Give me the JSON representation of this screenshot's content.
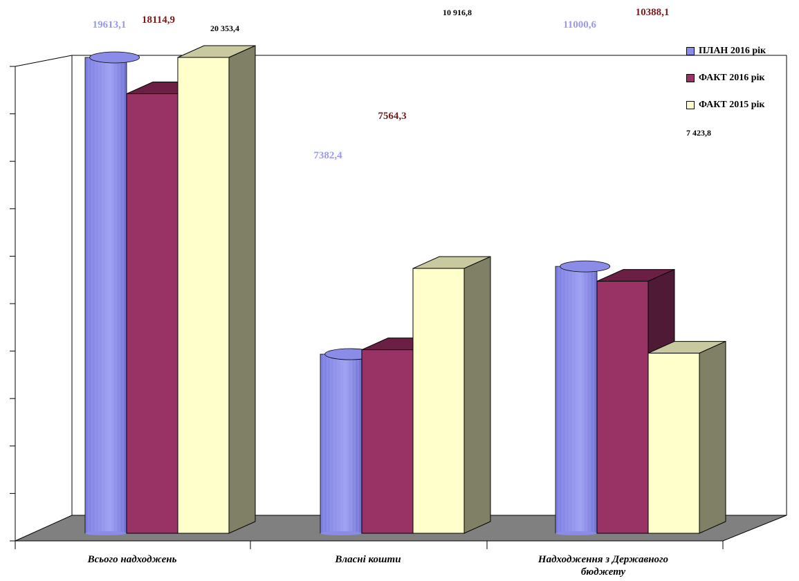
{
  "chart_data": {
    "type": "bar",
    "categories": [
      "Всього надходжень",
      "Власні кошти",
      "Надходження з Державного бюджету"
    ],
    "series": [
      {
        "name": "ПЛАН 2016 рік",
        "values": [
          19613.1,
          7382.4,
          11000.6
        ],
        "labels": [
          "19613,1",
          "7382,4",
          "11000,6"
        ],
        "color": "#8a8ce8",
        "label_color": "#9999ee"
      },
      {
        "name": "ФАКТ 2016 рік",
        "values": [
          18114.9,
          7564.3,
          10388.1
        ],
        "labels": [
          "18114,9",
          "7564,3",
          "10388,1"
        ],
        "color": "#993366",
        "label_color": "#7a1a1a"
      },
      {
        "name": "ФАКТ 2015 рік",
        "values": [
          20353.4,
          10916.8,
          7423.8
        ],
        "labels": [
          "20 353,4",
          "10 916,8",
          "7 423,8"
        ],
        "color": "#ffffcc",
        "label_color": "#000000"
      }
    ],
    "title": "",
    "xlabel": "",
    "ylabel": "",
    "grid": false,
    "legend_position": "top-right",
    "floor_color": "#808080",
    "side_color_fact2015": "#808066"
  }
}
